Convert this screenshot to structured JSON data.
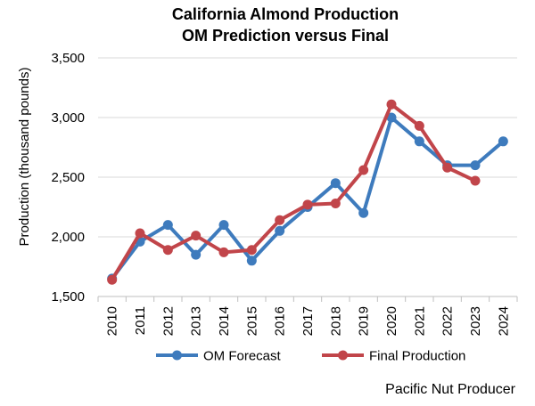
{
  "chart_data": {
    "type": "line",
    "title": [
      "California Almond Production",
      "OM Prediction versus Final"
    ],
    "xlabel": "",
    "ylabel": "Production (thousand pounds)",
    "ylim": [
      1500,
      3500
    ],
    "yticks": [
      1500,
      2000,
      2500,
      3000,
      3500
    ],
    "ytick_labels": [
      "1,500",
      "2,000",
      "2,500",
      "3,000",
      "3,500"
    ],
    "grid": true,
    "legend": "bottom",
    "x": [
      "2010",
      "2011",
      "2012",
      "2013",
      "2014",
      "2015",
      "2016",
      "2017",
      "2018",
      "2019",
      "2020",
      "2021",
      "2022",
      "2023",
      "2024"
    ],
    "series": [
      {
        "name": "OM Forecast",
        "color": "#3e7bbd",
        "values": [
          1650,
          1960,
          2100,
          1850,
          2100,
          1800,
          2050,
          2250,
          2450,
          2200,
          3000,
          2800,
          2600,
          2600,
          2800
        ]
      },
      {
        "name": "Final Production",
        "color": "#c1454a",
        "values": [
          1640,
          2030,
          1890,
          2010,
          1870,
          1890,
          2140,
          2270,
          2280,
          2560,
          3110,
          2930,
          2580,
          2470,
          null
        ]
      }
    ]
  },
  "source": "Pacific Nut Producer"
}
